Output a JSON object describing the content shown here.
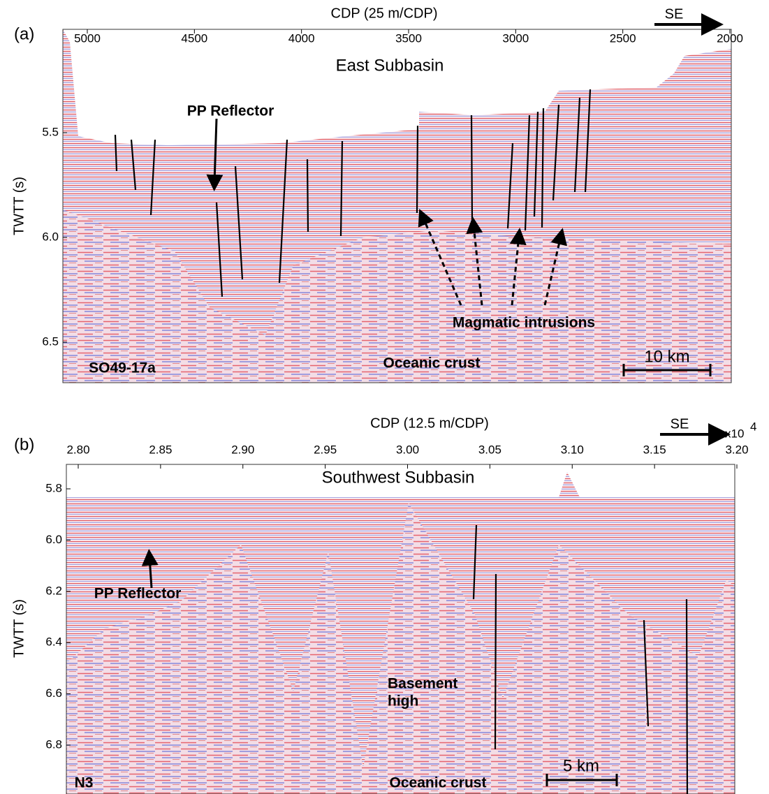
{
  "panels": [
    {
      "label": "(a)",
      "x_axis_title": "CDP (25 m/CDP)",
      "direction": "SE",
      "x_tick_labels": [
        "5000",
        "4500",
        "4000",
        "3500",
        "3000",
        "2500",
        "2000"
      ],
      "y_axis_title": "TWTT (s)",
      "y_tick_labels": [
        "5.5",
        "6.0",
        "6.5"
      ],
      "region": "East Subbasin",
      "line_name": "SO49-17a",
      "annotations": [
        "PP Reflector",
        "Magmatic intrusions",
        "Oceanic crust"
      ],
      "scale_bar": "10 km"
    },
    {
      "label": "(b)",
      "x_axis_title": "CDP (12.5 m/CDP)",
      "direction": "SE",
      "x_multiplier": "x10",
      "x_multiplier_exponent": "4",
      "x_tick_labels": [
        "2.80",
        "2.85",
        "2.90",
        "2.95",
        "3.00",
        "3.05",
        "3.10",
        "3.15",
        "3.20"
      ],
      "y_axis_title": "TWTT (s)",
      "y_tick_labels": [
        "5.8",
        "6.0",
        "6.2",
        "6.4",
        "6.6",
        "6.8"
      ],
      "region": "Southwest Subbasin",
      "line_name": "N3",
      "annotations": [
        "PP Reflector",
        "Basement",
        "high",
        "Oceanic crust"
      ],
      "scale_bar": "5 km"
    }
  ]
}
